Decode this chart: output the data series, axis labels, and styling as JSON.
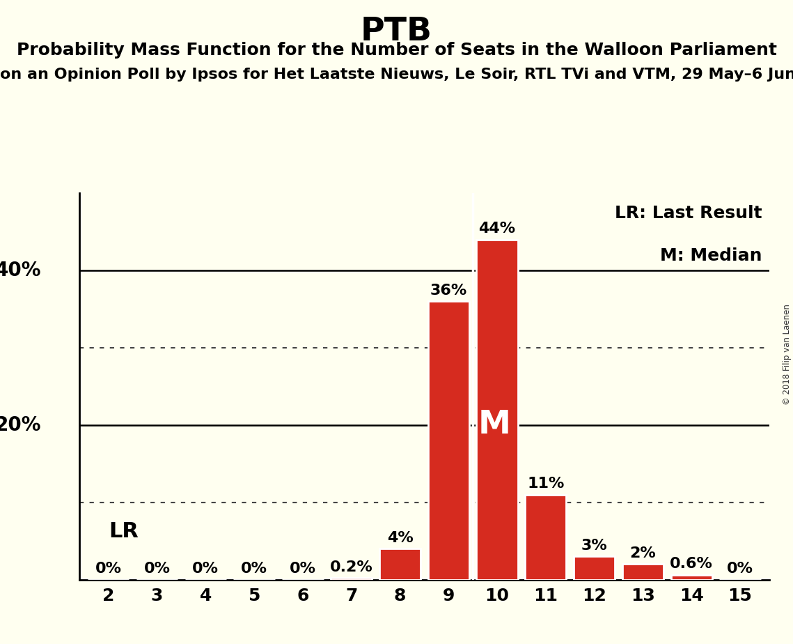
{
  "title": "PTB",
  "subtitle1": "Probability Mass Function for the Number of Seats in the Walloon Parliament",
  "subtitle2": "on an Opinion Poll by Ipsos for Het Laatste Nieuws, Le Soir, RTL TVi and VTM, 29 May–6 Jun",
  "seats": [
    2,
    3,
    4,
    5,
    6,
    7,
    8,
    9,
    10,
    11,
    12,
    13,
    14,
    15
  ],
  "probabilities": [
    0.0,
    0.0,
    0.0,
    0.0,
    0.0,
    0.2,
    4.0,
    36.0,
    44.0,
    11.0,
    3.0,
    2.0,
    0.6,
    0.0
  ],
  "bar_color": "#d62b1f",
  "bar_edge_color": "#ffffff",
  "background_color": "#fffff0",
  "median_seat": 10,
  "last_result_seat": 8,
  "median_label": "M",
  "lr_label": "LR",
  "legend_lr": "LR: Last Result",
  "legend_m": "M: Median",
  "bar_labels": [
    "0%",
    "0%",
    "0%",
    "0%",
    "0%",
    "0.2%",
    "4%",
    "36%",
    "44%",
    "11%",
    "3%",
    "2%",
    "0.6%",
    "0%"
  ],
  "title_fontsize": 34,
  "subtitle1_fontsize": 18,
  "subtitle2_fontsize": 16,
  "axis_tick_fontsize": 18,
  "bar_label_fontsize": 16,
  "median_label_fontsize": 34,
  "lr_label_fontsize": 22,
  "legend_fontsize": 18,
  "copyright_text": "© 2018 Filip van Laenen",
  "grid_color": "#444444",
  "ylim_max": 50,
  "solid_line_pcts": [
    20,
    40
  ],
  "dotted_line_pcts": [
    10,
    30
  ]
}
